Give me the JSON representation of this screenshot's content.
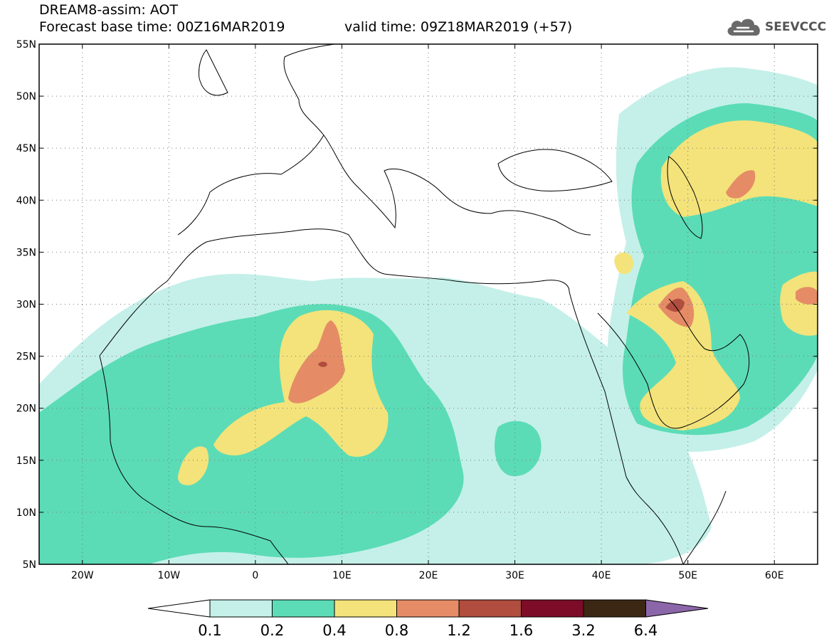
{
  "header": {
    "line1": "DREAM8-assim: AOT",
    "base_time": "Forecast base time: 00Z16MAR2019",
    "valid_time": "valid time: 09Z18MAR2019 (+57)"
  },
  "logo": {
    "text": "SEEVCCC",
    "icon": "cloud-icon"
  },
  "map": {
    "extent": {
      "lon_min": -25,
      "lon_max": 65,
      "lat_min": 5,
      "lat_max": 55
    },
    "lat_ticks": [
      {
        "lat": 55,
        "label": "55N"
      },
      {
        "lat": 50,
        "label": "50N"
      },
      {
        "lat": 45,
        "label": "45N"
      },
      {
        "lat": 40,
        "label": "40N"
      },
      {
        "lat": 35,
        "label": "35N"
      },
      {
        "lat": 30,
        "label": "30N"
      },
      {
        "lat": 25,
        "label": "25N"
      },
      {
        "lat": 20,
        "label": "20N"
      },
      {
        "lat": 15,
        "label": "15N"
      },
      {
        "lat": 10,
        "label": "10N"
      },
      {
        "lat": 5,
        "label": "5N"
      }
    ],
    "lon_ticks": [
      {
        "lon": -20,
        "label": "20W"
      },
      {
        "lon": -10,
        "label": "10W"
      },
      {
        "lon": 0,
        "label": "0"
      },
      {
        "lon": 10,
        "label": "10E"
      },
      {
        "lon": 20,
        "label": "20E"
      },
      {
        "lon": 30,
        "label": "30E"
      },
      {
        "lon": 40,
        "label": "40E"
      },
      {
        "lon": 50,
        "label": "50E"
      },
      {
        "lon": 60,
        "label": "60E"
      }
    ],
    "grid": "dotted",
    "colors": {
      "0.1-0.2": "#c4f0e9",
      "0.2-0.4": "#5bdcb6",
      "0.4-0.8": "#f3e37a",
      "0.8-1.2": "#e58c66",
      "1.2-1.6": "#b04d3e",
      "1.6-3.2": "#7c0c27",
      "3.2-6.4": "#3b2714",
      ">6.4": "#8b66a8"
    }
  },
  "colorbar": {
    "labels": [
      "0.1",
      "0.2",
      "0.4",
      "0.8",
      "1.2",
      "1.6",
      "3.2",
      "6.4"
    ],
    "colors": [
      "#c4f0e9",
      "#5bdcb6",
      "#f3e37a",
      "#e58c66",
      "#b04d3e",
      "#7c0c27",
      "#3b2714"
    ],
    "below_color": "#ffffff",
    "above_color": "#8b66a8"
  }
}
